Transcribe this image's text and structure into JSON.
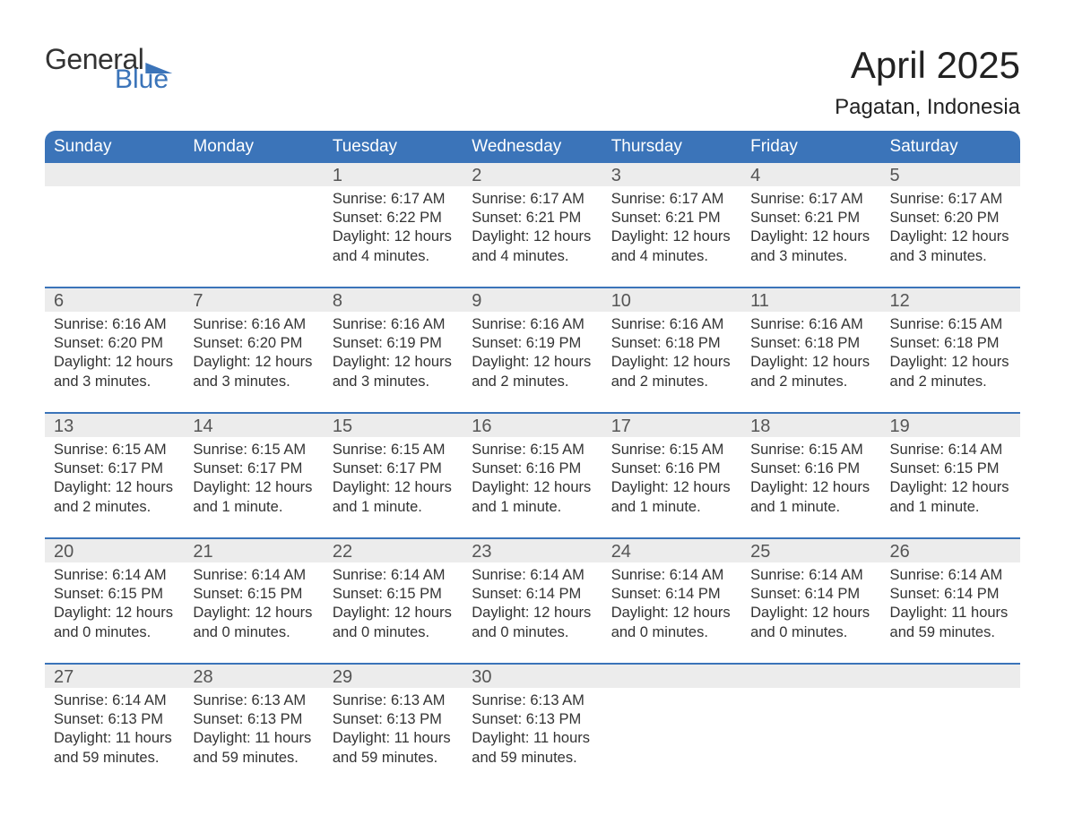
{
  "brand": {
    "word1": "General",
    "word2": "Blue",
    "word1_color": "#333333",
    "word2_color": "#3b74b9"
  },
  "title": "April 2025",
  "location": "Pagatan, Indonesia",
  "header_bg": "#3b74b9",
  "header_text_color": "#ffffff",
  "daynum_bg": "#ececec",
  "row_border_color": "#3b74b9",
  "text_color": "#333333",
  "background_color": "#ffffff",
  "day_headers": [
    "Sunday",
    "Monday",
    "Tuesday",
    "Wednesday",
    "Thursday",
    "Friday",
    "Saturday"
  ],
  "weeks": [
    {
      "top_border": false,
      "days": [
        {
          "num": "",
          "sunrise": "",
          "sunset": "",
          "daylight": ""
        },
        {
          "num": "",
          "sunrise": "",
          "sunset": "",
          "daylight": ""
        },
        {
          "num": "1",
          "sunrise": "Sunrise: 6:17 AM",
          "sunset": "Sunset: 6:22 PM",
          "daylight": "Daylight: 12 hours and 4 minutes."
        },
        {
          "num": "2",
          "sunrise": "Sunrise: 6:17 AM",
          "sunset": "Sunset: 6:21 PM",
          "daylight": "Daylight: 12 hours and 4 minutes."
        },
        {
          "num": "3",
          "sunrise": "Sunrise: 6:17 AM",
          "sunset": "Sunset: 6:21 PM",
          "daylight": "Daylight: 12 hours and 4 minutes."
        },
        {
          "num": "4",
          "sunrise": "Sunrise: 6:17 AM",
          "sunset": "Sunset: 6:21 PM",
          "daylight": "Daylight: 12 hours and 3 minutes."
        },
        {
          "num": "5",
          "sunrise": "Sunrise: 6:17 AM",
          "sunset": "Sunset: 6:20 PM",
          "daylight": "Daylight: 12 hours and 3 minutes."
        }
      ]
    },
    {
      "top_border": true,
      "days": [
        {
          "num": "6",
          "sunrise": "Sunrise: 6:16 AM",
          "sunset": "Sunset: 6:20 PM",
          "daylight": "Daylight: 12 hours and 3 minutes."
        },
        {
          "num": "7",
          "sunrise": "Sunrise: 6:16 AM",
          "sunset": "Sunset: 6:20 PM",
          "daylight": "Daylight: 12 hours and 3 minutes."
        },
        {
          "num": "8",
          "sunrise": "Sunrise: 6:16 AM",
          "sunset": "Sunset: 6:19 PM",
          "daylight": "Daylight: 12 hours and 3 minutes."
        },
        {
          "num": "9",
          "sunrise": "Sunrise: 6:16 AM",
          "sunset": "Sunset: 6:19 PM",
          "daylight": "Daylight: 12 hours and 2 minutes."
        },
        {
          "num": "10",
          "sunrise": "Sunrise: 6:16 AM",
          "sunset": "Sunset: 6:18 PM",
          "daylight": "Daylight: 12 hours and 2 minutes."
        },
        {
          "num": "11",
          "sunrise": "Sunrise: 6:16 AM",
          "sunset": "Sunset: 6:18 PM",
          "daylight": "Daylight: 12 hours and 2 minutes."
        },
        {
          "num": "12",
          "sunrise": "Sunrise: 6:15 AM",
          "sunset": "Sunset: 6:18 PM",
          "daylight": "Daylight: 12 hours and 2 minutes."
        }
      ]
    },
    {
      "top_border": true,
      "days": [
        {
          "num": "13",
          "sunrise": "Sunrise: 6:15 AM",
          "sunset": "Sunset: 6:17 PM",
          "daylight": "Daylight: 12 hours and 2 minutes."
        },
        {
          "num": "14",
          "sunrise": "Sunrise: 6:15 AM",
          "sunset": "Sunset: 6:17 PM",
          "daylight": "Daylight: 12 hours and 1 minute."
        },
        {
          "num": "15",
          "sunrise": "Sunrise: 6:15 AM",
          "sunset": "Sunset: 6:17 PM",
          "daylight": "Daylight: 12 hours and 1 minute."
        },
        {
          "num": "16",
          "sunrise": "Sunrise: 6:15 AM",
          "sunset": "Sunset: 6:16 PM",
          "daylight": "Daylight: 12 hours and 1 minute."
        },
        {
          "num": "17",
          "sunrise": "Sunrise: 6:15 AM",
          "sunset": "Sunset: 6:16 PM",
          "daylight": "Daylight: 12 hours and 1 minute."
        },
        {
          "num": "18",
          "sunrise": "Sunrise: 6:15 AM",
          "sunset": "Sunset: 6:16 PM",
          "daylight": "Daylight: 12 hours and 1 minute."
        },
        {
          "num": "19",
          "sunrise": "Sunrise: 6:14 AM",
          "sunset": "Sunset: 6:15 PM",
          "daylight": "Daylight: 12 hours and 1 minute."
        }
      ]
    },
    {
      "top_border": true,
      "days": [
        {
          "num": "20",
          "sunrise": "Sunrise: 6:14 AM",
          "sunset": "Sunset: 6:15 PM",
          "daylight": "Daylight: 12 hours and 0 minutes."
        },
        {
          "num": "21",
          "sunrise": "Sunrise: 6:14 AM",
          "sunset": "Sunset: 6:15 PM",
          "daylight": "Daylight: 12 hours and 0 minutes."
        },
        {
          "num": "22",
          "sunrise": "Sunrise: 6:14 AM",
          "sunset": "Sunset: 6:15 PM",
          "daylight": "Daylight: 12 hours and 0 minutes."
        },
        {
          "num": "23",
          "sunrise": "Sunrise: 6:14 AM",
          "sunset": "Sunset: 6:14 PM",
          "daylight": "Daylight: 12 hours and 0 minutes."
        },
        {
          "num": "24",
          "sunrise": "Sunrise: 6:14 AM",
          "sunset": "Sunset: 6:14 PM",
          "daylight": "Daylight: 12 hours and 0 minutes."
        },
        {
          "num": "25",
          "sunrise": "Sunrise: 6:14 AM",
          "sunset": "Sunset: 6:14 PM",
          "daylight": "Daylight: 12 hours and 0 minutes."
        },
        {
          "num": "26",
          "sunrise": "Sunrise: 6:14 AM",
          "sunset": "Sunset: 6:14 PM",
          "daylight": "Daylight: 11 hours and 59 minutes."
        }
      ]
    },
    {
      "top_border": true,
      "days": [
        {
          "num": "27",
          "sunrise": "Sunrise: 6:14 AM",
          "sunset": "Sunset: 6:13 PM",
          "daylight": "Daylight: 11 hours and 59 minutes."
        },
        {
          "num": "28",
          "sunrise": "Sunrise: 6:13 AM",
          "sunset": "Sunset: 6:13 PM",
          "daylight": "Daylight: 11 hours and 59 minutes."
        },
        {
          "num": "29",
          "sunrise": "Sunrise: 6:13 AM",
          "sunset": "Sunset: 6:13 PM",
          "daylight": "Daylight: 11 hours and 59 minutes."
        },
        {
          "num": "30",
          "sunrise": "Sunrise: 6:13 AM",
          "sunset": "Sunset: 6:13 PM",
          "daylight": "Daylight: 11 hours and 59 minutes."
        },
        {
          "num": "",
          "sunrise": "",
          "sunset": "",
          "daylight": ""
        },
        {
          "num": "",
          "sunrise": "",
          "sunset": "",
          "daylight": ""
        },
        {
          "num": "",
          "sunrise": "",
          "sunset": "",
          "daylight": ""
        }
      ]
    }
  ]
}
